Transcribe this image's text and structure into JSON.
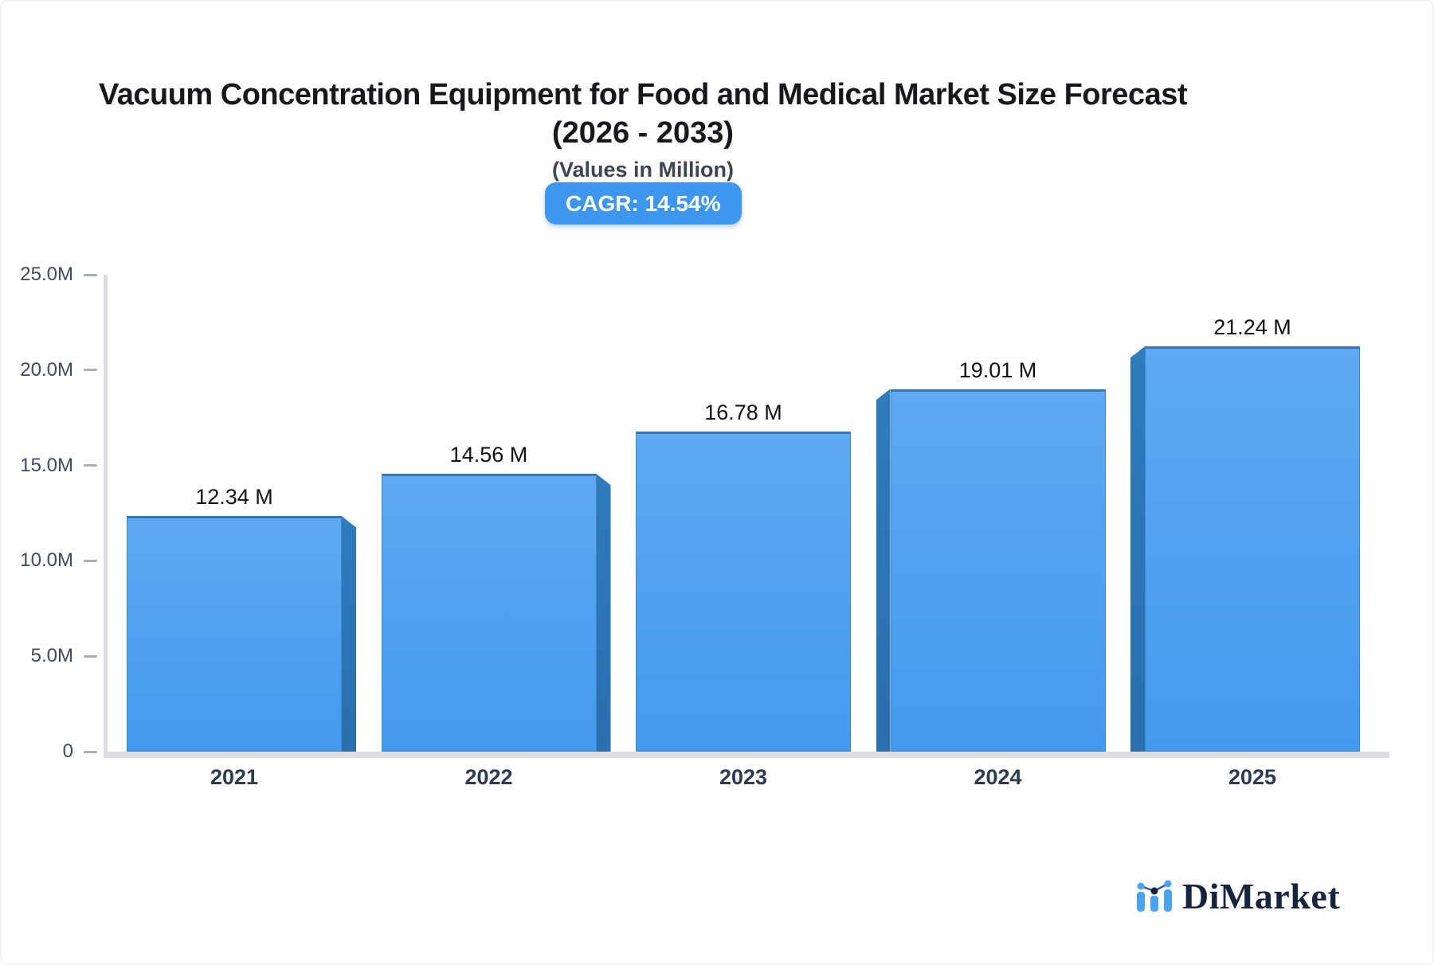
{
  "header": {
    "title_line1": "Vacuum Concentration Equipment for Food and Medical Market Size Forecast",
    "title_line2": "(2026 - 2033)",
    "subtitle": "(Values in Million)",
    "cagr_badge": "CAGR: 14.54%"
  },
  "chart_data": {
    "type": "bar",
    "title": "Vacuum Concentration Equipment for Food and Medical Market Size Forecast (2026 - 2033)",
    "subtitle": "(Values in Million)",
    "cagr": "14.54%",
    "categories": [
      "2021",
      "2022",
      "2023",
      "2024",
      "2025"
    ],
    "values": [
      12.34,
      14.56,
      16.78,
      19.01,
      21.24
    ],
    "value_labels": [
      "12.34 M",
      "14.56 M",
      "16.78 M",
      "19.01 M",
      "21.24 M"
    ],
    "unit": "Million",
    "ylim": [
      0,
      25
    ],
    "ytick_values": [
      25,
      20,
      15,
      10,
      5,
      0
    ],
    "ytick_labels": [
      "25.0M",
      "20.0M",
      "15.0M",
      "10.0M",
      "5.0M",
      "0"
    ],
    "grid": false,
    "legend": "none",
    "style": "3d-perspective-bars"
  },
  "colors": {
    "bar_face_top": "#5fa9f1",
    "bar_face_bottom": "#429aef",
    "bar_side": "#2b73b3",
    "bar_edge": "#3577b8",
    "badge_bg": "#3e97ec",
    "axis_line": "#dcdde3",
    "tick": "#a8aeb9",
    "y_label": "#414a57",
    "x_label": "#2d3a4f",
    "logo_blue": "#4ba3f7",
    "logo_navy": "#16243e"
  },
  "branding": {
    "name": "DiMarket"
  }
}
